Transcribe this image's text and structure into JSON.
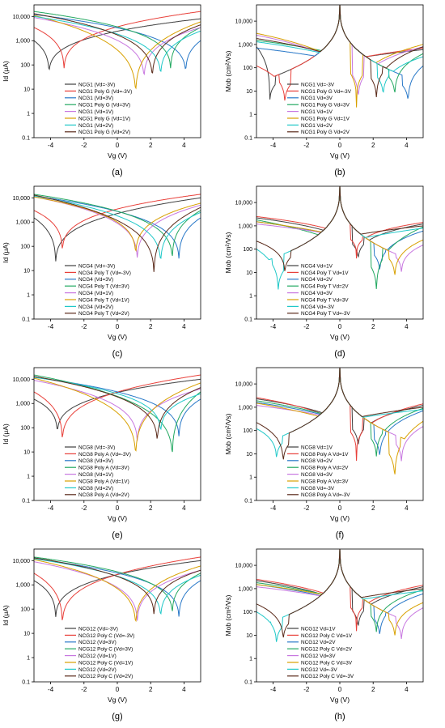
{
  "figure": {
    "colors": [
      "#404040",
      "#e8403a",
      "#2878c8",
      "#22a860",
      "#c878e0",
      "#d8a000",
      "#20c8c8",
      "#5a2a1a"
    ],
    "x_tick_labels": [
      "-4",
      "-2",
      "0",
      "2",
      "4"
    ],
    "id_tick_labels": [
      "0.1",
      "1",
      "10",
      "100",
      "1,000",
      "10,000"
    ],
    "mob_tick_labels": [
      "0.1",
      "1",
      "10",
      "100",
      "1,000",
      "10,000"
    ]
  },
  "chart_data": [
    {
      "type": "line",
      "panel": "(a)",
      "xlabel": "Vg (V)",
      "ylabel": "Id (μA)",
      "xlim": [
        -5,
        5
      ],
      "ylim": [
        0.1,
        30000
      ],
      "log_y": true,
      "legend_position": "center-left",
      "series": [
        {
          "name": "NCG1 (Vd=-3V)",
          "min_x": -4.1,
          "min_y": 22,
          "left_y": 1000,
          "right_y": 8000
        },
        {
          "name": "NCG1 Poly G (Vd=-3V)",
          "min_x": -3.2,
          "min_y": 30,
          "left_y": 3500,
          "right_y": 16000
        },
        {
          "name": "NCG1 (Vd=3V)",
          "min_x": 4.1,
          "min_y": 22,
          "left_y": 12000,
          "right_y": 1000
        },
        {
          "name": "NCG1 Poly G (Vd=3V)",
          "min_x": 3.2,
          "min_y": 30,
          "left_y": 16000,
          "right_y": 3500
        },
        {
          "name": "NCG1 (Vd=1V)",
          "min_x": 1.6,
          "min_y": 12,
          "left_y": 9000,
          "right_y": 3500
        },
        {
          "name": "NCG1 Poly G (Vd=1V)",
          "min_x": 1.1,
          "min_y": 2,
          "left_y": 11000,
          "right_y": 6000
        },
        {
          "name": "NCG1 (Vd=2V)",
          "min_x": 2.6,
          "min_y": 16,
          "left_y": 10000,
          "right_y": 2500
        },
        {
          "name": "NCG1 Poly G (Vd=2V)",
          "min_x": 2.1,
          "min_y": 12,
          "left_y": 13000,
          "right_y": 4500
        }
      ]
    },
    {
      "type": "line",
      "panel": "(b)",
      "xlabel": "Vg (V)",
      "ylabel": "Mob (cm²/Vs)",
      "xlim": [
        -5,
        5
      ],
      "ylim": [
        0.1,
        50000
      ],
      "log_y": true,
      "legend_position": "center-left",
      "series": [
        {
          "name": "NCG1 Vd=-3V",
          "min_x": -4.2,
          "min_y": 2,
          "left_y": 800,
          "right_y": 600
        },
        {
          "name": "NCG1 Poly G Vd=-3V",
          "min_x": -3.3,
          "min_y": 1.5,
          "left_y": 120,
          "right_y": 700
        },
        {
          "name": "NCG1 Vd=3V",
          "min_x": 4.1,
          "min_y": 1.5,
          "left_y": 700,
          "right_y": 120
        },
        {
          "name": "NCG1 Poly G Vd=3V",
          "min_x": 3.3,
          "min_y": 3,
          "left_y": 1500,
          "right_y": 400
        },
        {
          "name": "NCG1 Vd=1V",
          "min_x": 1.1,
          "min_y": 2,
          "left_y": 2500,
          "right_y": 800
        },
        {
          "name": "NCG1 Poly G Vd=1V",
          "min_x": 1.0,
          "min_y": 2,
          "left_y": 3000,
          "right_y": 1000
        },
        {
          "name": "NCG1 Vd=2V",
          "min_x": 2.6,
          "min_y": 3,
          "left_y": 1300,
          "right_y": 300
        },
        {
          "name": "NCG1 Poly G Vd=2V",
          "min_x": 2.2,
          "min_y": 2,
          "left_y": 1800,
          "right_y": 800
        }
      ]
    },
    {
      "type": "line",
      "panel": "(c)",
      "xlabel": "Vg (V)",
      "ylabel": "Id (μA)",
      "xlim": [
        -5,
        5
      ],
      "ylim": [
        0.1,
        30000
      ],
      "log_y": true,
      "legend_position": "center-left",
      "series": [
        {
          "name": "NCG4 (Vd=-3V)",
          "min_x": -3.7,
          "min_y": 9,
          "left_y": 1500,
          "right_y": 10000
        },
        {
          "name": "NCG4 Poly T (Vd=-3V)",
          "min_x": -3.3,
          "min_y": 30,
          "left_y": 3000,
          "right_y": 14000
        },
        {
          "name": "NCG4 (Vd=3V)",
          "min_x": 3.7,
          "min_y": 12,
          "left_y": 12000,
          "right_y": 1500
        },
        {
          "name": "NCG4 Poly T (Vd=3V)",
          "min_x": 3.3,
          "min_y": 12,
          "left_y": 14000,
          "right_y": 3000
        },
        {
          "name": "NCG4 (Vd=1V)",
          "min_x": 1.2,
          "min_y": 12,
          "left_y": 11000,
          "right_y": 5000
        },
        {
          "name": "NCG4 Poly T (Vd=1V)",
          "min_x": 1.1,
          "min_y": 20,
          "left_y": 11000,
          "right_y": 6000
        },
        {
          "name": "NCG4 (Vd=2V)",
          "min_x": 2.6,
          "min_y": 8,
          "left_y": 12000,
          "right_y": 2500
        },
        {
          "name": "NCG4 Poly T (Vd=2V)",
          "min_x": 2.2,
          "min_y": 2.5,
          "left_y": 13000,
          "right_y": 4000
        }
      ]
    },
    {
      "type": "line",
      "panel": "(d)",
      "xlabel": "Vg (V)",
      "ylabel": "Mob (cm²/Vs)",
      "xlim": [
        -5,
        5
      ],
      "ylim": [
        0.1,
        50000
      ],
      "log_y": true,
      "legend_position": "center-left",
      "series": [
        {
          "name": "NCG4 Vd=1V",
          "min_x": 1.1,
          "min_y": 20,
          "left_y": 2200,
          "right_y": 1200
        },
        {
          "name": "NCG4 Poly T Vd=1V",
          "min_x": 1.0,
          "min_y": 40,
          "left_y": 2500,
          "right_y": 1400
        },
        {
          "name": "NCG4 Vd=2V",
          "min_x": 2.4,
          "min_y": 5,
          "left_y": 1500,
          "right_y": 600
        },
        {
          "name": "NCG4 Poly T Vd=2V",
          "min_x": 2.2,
          "min_y": 0.6,
          "left_y": 1800,
          "right_y": 900
        },
        {
          "name": "NCG4 Vd=3V",
          "min_x": 3.7,
          "min_y": 5,
          "left_y": 1200,
          "right_y": 150
        },
        {
          "name": "NCG4 Poly T Vd=3V",
          "min_x": 3.3,
          "min_y": 3,
          "left_y": 1500,
          "right_y": 250
        },
        {
          "name": "NCG4 Vd=-3V",
          "min_x": -3.7,
          "min_y": 0.7,
          "left_y": 100,
          "right_y": 800
        },
        {
          "name": "NCG4 Poly T Vd=-3V",
          "min_x": -3.3,
          "min_y": 5,
          "left_y": 220,
          "right_y": 1000
        }
      ]
    },
    {
      "type": "line",
      "panel": "(e)",
      "xlabel": "Vg (V)",
      "ylabel": "Id (μA)",
      "xlim": [
        -5,
        5
      ],
      "ylim": [
        0.1,
        30000
      ],
      "log_y": true,
      "legend_position": "center-left",
      "series": [
        {
          "name": "NCG8 (Vd=-3V)",
          "min_x": -3.6,
          "min_y": 30,
          "left_y": 1500,
          "right_y": 10000
        },
        {
          "name": "NCG8 Poly A (Vd=-3V)",
          "min_x": -3.3,
          "min_y": 12,
          "left_y": 3000,
          "right_y": 15000
        },
        {
          "name": "NCG8 (Vd=3V)",
          "min_x": 3.7,
          "min_y": 18,
          "left_y": 12000,
          "right_y": 1500
        },
        {
          "name": "NCG8 Poly A (Vd=3V)",
          "min_x": 3.3,
          "min_y": 2,
          "left_y": 15000,
          "right_y": 3000
        },
        {
          "name": "NCG8 (Vd=1V)",
          "min_x": 1.2,
          "min_y": 10,
          "left_y": 9000,
          "right_y": 4000
        },
        {
          "name": "NCG8 Poly A (Vd=1V)",
          "min_x": 1.1,
          "min_y": 2,
          "left_y": 11000,
          "right_y": 7000
        },
        {
          "name": "NCG8 (Vd=2V)",
          "min_x": 2.6,
          "min_y": 30,
          "left_y": 12000,
          "right_y": 2500
        },
        {
          "name": "NCG8 Poly A (Vd=2V)",
          "min_x": 2.4,
          "min_y": 10,
          "left_y": 13000,
          "right_y": 4500
        }
      ]
    },
    {
      "type": "line",
      "panel": "(f)",
      "xlabel": "Vg (V)",
      "ylabel": "Mob (cm²/Vs)",
      "xlim": [
        -5,
        5
      ],
      "ylim": [
        0.1,
        50000
      ],
      "log_y": true,
      "legend_position": "center-left",
      "series": [
        {
          "name": "NCG8 Vd=1V",
          "min_x": 1.1,
          "min_y": 10,
          "left_y": 2300,
          "right_y": 1200
        },
        {
          "name": "NCG8 Poly A Vd=1V",
          "min_x": 1.0,
          "min_y": 5,
          "left_y": 2600,
          "right_y": 1400
        },
        {
          "name": "NCG8 Vd=2V",
          "min_x": 2.4,
          "min_y": 3,
          "left_y": 1600,
          "right_y": 700
        },
        {
          "name": "NCG8 Poly A Vd=2V",
          "min_x": 2.2,
          "min_y": 3,
          "left_y": 1900,
          "right_y": 900
        },
        {
          "name": "NCG8 Vd=3V",
          "min_x": 3.7,
          "min_y": 2,
          "left_y": 1200,
          "right_y": 150
        },
        {
          "name": "NCG8 Poly A Vd=3V",
          "min_x": 3.3,
          "min_y": 0.3,
          "left_y": 1500,
          "right_y": 250
        },
        {
          "name": "NCG8 Vd=-3V",
          "min_x": -3.8,
          "min_y": 3,
          "left_y": 120,
          "right_y": 800
        },
        {
          "name": "NCG8 Poly A Vd=-3V",
          "min_x": -3.4,
          "min_y": 2,
          "left_y": 220,
          "right_y": 1000
        }
      ]
    },
    {
      "type": "line",
      "panel": "(g)",
      "xlabel": "Vg (V)",
      "ylabel": "Id (μA)",
      "xlim": [
        -5,
        5
      ],
      "ylim": [
        0.1,
        30000
      ],
      "log_y": true,
      "legend_position": "center-left",
      "series": [
        {
          "name": "NCG12 (Vd=-3V)",
          "min_x": -3.7,
          "min_y": 20,
          "left_y": 1500,
          "right_y": 10000
        },
        {
          "name": "NCG12 Poly C (Vd=-3V)",
          "min_x": -3.3,
          "min_y": 10,
          "left_y": 3000,
          "right_y": 14000
        },
        {
          "name": "NCG12 (Vd=3V)",
          "min_x": 3.7,
          "min_y": 20,
          "left_y": 12000,
          "right_y": 1500
        },
        {
          "name": "NCG12 Poly C (Vd=3V)",
          "min_x": 3.3,
          "min_y": 30,
          "left_y": 14000,
          "right_y": 3000
        },
        {
          "name": "NCG12 (Vd=1V)",
          "min_x": 1.2,
          "min_y": 12,
          "left_y": 9000,
          "right_y": 4000
        },
        {
          "name": "NCG12 Poly C (Vd=1V)",
          "min_x": 1.1,
          "min_y": 8,
          "left_y": 11000,
          "right_y": 6000
        },
        {
          "name": "NCG12 (Vd=2V)",
          "min_x": 2.6,
          "min_y": 20,
          "left_y": 12000,
          "right_y": 2500
        },
        {
          "name": "NCG12 Poly C (Vd=2V)",
          "min_x": 2.2,
          "min_y": 25,
          "left_y": 13000,
          "right_y": 4000
        }
      ]
    },
    {
      "type": "line",
      "panel": "(h)",
      "xlabel": "Vg (V)",
      "ylabel": "Mob (cm²/Vs)",
      "xlim": [
        -5,
        5
      ],
      "ylim": [
        0.1,
        50000
      ],
      "log_y": true,
      "legend_position": "center-left",
      "series": [
        {
          "name": "NCG12 Vd=1V",
          "min_x": 1.1,
          "min_y": 10,
          "left_y": 2200,
          "right_y": 1200
        },
        {
          "name": "NCG12 Poly C Vd=1V",
          "min_x": 1.0,
          "min_y": 15,
          "left_y": 2500,
          "right_y": 1400
        },
        {
          "name": "NCG12 Vd=2V",
          "min_x": 2.4,
          "min_y": 4,
          "left_y": 1500,
          "right_y": 600
        },
        {
          "name": "NCG12 Poly C Vd=2V",
          "min_x": 2.2,
          "min_y": 6,
          "left_y": 1800,
          "right_y": 900
        },
        {
          "name": "NCG12 Vd=3V",
          "min_x": 3.7,
          "min_y": 3,
          "left_y": 1200,
          "right_y": 150
        },
        {
          "name": "NCG12 Poly C Vd=3V",
          "min_x": 3.3,
          "min_y": 4,
          "left_y": 1500,
          "right_y": 250
        },
        {
          "name": "NCG12 Vd=-3V",
          "min_x": -3.8,
          "min_y": 2,
          "left_y": 100,
          "right_y": 800
        },
        {
          "name": "NCG12 Poly C Vd=-3V",
          "min_x": -3.4,
          "min_y": 3,
          "left_y": 220,
          "right_y": 1000
        }
      ]
    }
  ]
}
